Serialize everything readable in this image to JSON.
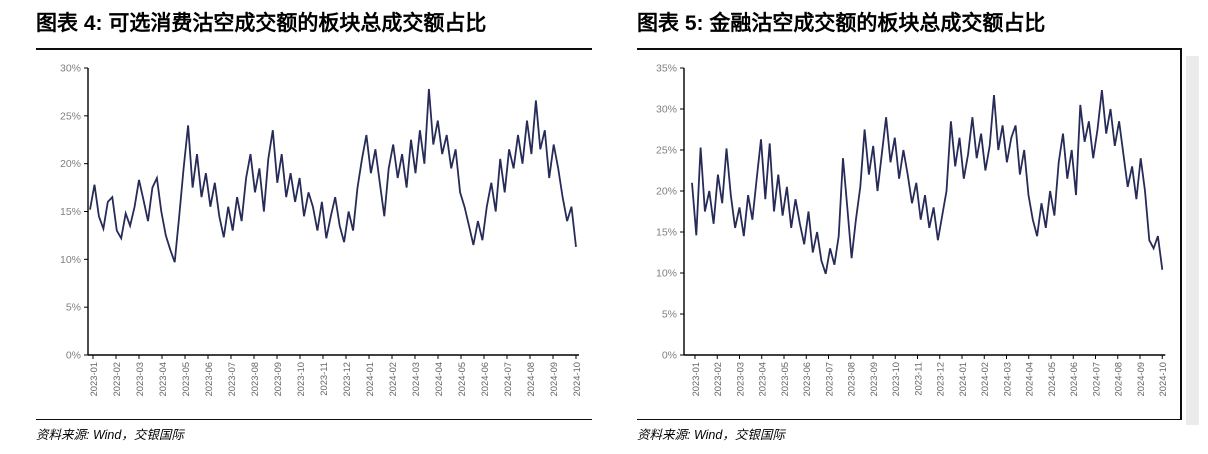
{
  "figures": [
    {
      "title": "图表 4: 可选消费沽空成交额的板块总成交额占比",
      "source": "资料来源: Wind，交银国际",
      "chart_data": {
        "type": "line",
        "title": "可选消费沽空成交额的板块总成交额占比",
        "legend_position": "none",
        "grid": false,
        "line_color": "#272b58",
        "ylim": [
          0,
          30
        ],
        "ytick_step": 5,
        "ytick_labels": [
          "0%",
          "5%",
          "10%",
          "15%",
          "20%",
          "25%",
          "30%"
        ],
        "x_tick_labels": [
          "2023-01",
          "2023-02",
          "2023-03",
          "2023-04",
          "2023-05",
          "2023-06",
          "2023-07",
          "2023-08",
          "2023-09",
          "2023-10",
          "2023-11",
          "2023-12",
          "2024-01",
          "2024-02",
          "2024-03",
          "2024-04",
          "2024-05",
          "2024-06",
          "2024-07",
          "2024-08",
          "2024-09",
          "2024-10"
        ],
        "points_per_month": 5,
        "values": [
          15.2,
          17.8,
          14.5,
          13.2,
          16.0,
          16.5,
          13.0,
          12.2,
          14.8,
          13.5,
          15.5,
          18.3,
          16.2,
          14.0,
          17.5,
          18.5,
          15.0,
          12.5,
          11.0,
          9.7,
          14.5,
          19.5,
          24.0,
          17.5,
          21.0,
          16.5,
          19.0,
          15.5,
          18.0,
          14.5,
          12.3,
          15.5,
          13.0,
          16.5,
          14.0,
          18.5,
          21.0,
          17.0,
          19.5,
          15.0,
          20.5,
          23.5,
          18.0,
          21.0,
          16.5,
          19.0,
          16.0,
          18.5,
          14.5,
          17.0,
          15.5,
          13.0,
          16.0,
          12.2,
          14.5,
          16.5,
          13.5,
          11.8,
          15.0,
          13.0,
          17.5,
          20.5,
          23.0,
          19.0,
          21.5,
          18.0,
          14.5,
          19.5,
          22.0,
          18.5,
          21.0,
          17.5,
          22.5,
          19.0,
          23.5,
          20.0,
          27.8,
          22.0,
          24.5,
          21.0,
          23.0,
          19.5,
          21.5,
          17.0,
          15.5,
          13.5,
          11.5,
          14.0,
          12.0,
          15.5,
          18.0,
          15.0,
          20.5,
          17.0,
          21.5,
          19.5,
          23.0,
          20.0,
          24.5,
          21.0,
          26.6,
          21.5,
          23.5,
          18.5,
          22.0,
          19.5,
          16.5,
          14.0,
          15.5,
          11.3
        ]
      }
    },
    {
      "title": "图表 5: 金融沽空成交额的板块总成交额占比",
      "source": "资料来源: Wind，交银国际",
      "chart_data": {
        "type": "line",
        "title": "金融沽空成交额的板块总成交额占比",
        "legend_position": "none",
        "grid": false,
        "line_color": "#272b58",
        "ylim": [
          0,
          35
        ],
        "ytick_step": 5,
        "ytick_labels": [
          "0%",
          "5%",
          "10%",
          "15%",
          "20%",
          "25%",
          "30%",
          "35%"
        ],
        "x_tick_labels": [
          "2023-01",
          "2023-02",
          "2023-03",
          "2023-04",
          "2023-05",
          "2023-06",
          "2023-07",
          "2023-08",
          "2023-09",
          "2023-10",
          "2023-11",
          "2023-12",
          "2024-01",
          "2024-02",
          "2024-03",
          "2024-04",
          "2024-05",
          "2024-06",
          "2024-07",
          "2024-08",
          "2024-09",
          "2024-10"
        ],
        "points_per_month": 5,
        "values": [
          21.0,
          14.6,
          25.3,
          17.5,
          20.0,
          16.0,
          22.0,
          18.5,
          25.2,
          19.5,
          15.5,
          18.0,
          14.5,
          19.5,
          16.5,
          21.5,
          26.3,
          19.0,
          25.8,
          17.5,
          22.0,
          17.0,
          20.5,
          15.5,
          19.0,
          16.0,
          13.5,
          17.5,
          12.5,
          15.0,
          11.5,
          9.9,
          13.0,
          11.0,
          14.5,
          24.0,
          18.0,
          11.8,
          16.5,
          20.5,
          27.5,
          22.0,
          25.5,
          20.0,
          24.5,
          29.0,
          23.5,
          26.5,
          21.5,
          25.0,
          22.0,
          18.5,
          21.0,
          16.5,
          19.5,
          15.5,
          18.0,
          14.0,
          17.0,
          20.0,
          28.5,
          23.0,
          26.5,
          21.5,
          24.5,
          29.0,
          24.0,
          27.0,
          22.5,
          25.5,
          31.7,
          25.0,
          28.0,
          23.5,
          26.5,
          28.0,
          22.0,
          25.0,
          19.5,
          16.5,
          14.5,
          18.5,
          15.5,
          20.0,
          17.0,
          23.5,
          27.0,
          21.5,
          25.0,
          19.5,
          30.5,
          26.0,
          28.5,
          24.0,
          27.5,
          32.3,
          27.0,
          30.0,
          25.5,
          28.5,
          24.5,
          20.5,
          23.0,
          19.0,
          24.0,
          20.0,
          14.0,
          13.0,
          14.5,
          10.4
        ]
      }
    }
  ]
}
